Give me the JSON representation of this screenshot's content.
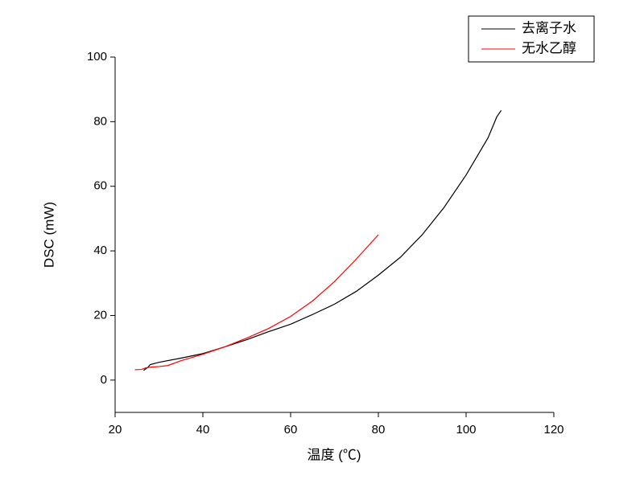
{
  "chart_data": {
    "type": "line",
    "x_label": "温度 (℃)",
    "y_label": "DSC (mW)",
    "xlim": [
      20,
      120
    ],
    "xticks": [
      20,
      40,
      60,
      80,
      100,
      120
    ],
    "ylim": [
      -10,
      100
    ],
    "yticks": [
      0,
      20,
      40,
      60,
      80,
      100
    ],
    "legend": "top-right",
    "series": [
      {
        "name": "去离子水",
        "color": "#000000",
        "x": [
          26.5,
          27.5,
          28,
          30,
          35,
          40,
          45,
          50,
          55,
          60,
          65,
          70,
          75,
          80,
          85,
          90,
          95,
          100,
          105,
          107,
          108
        ],
        "values": [
          3,
          4,
          4.8,
          5.5,
          6.8,
          8.2,
          10.3,
          12.5,
          15,
          17.3,
          20.3,
          23.5,
          27.5,
          32.5,
          38,
          45,
          53.5,
          63.5,
          75,
          81.5,
          83.5
        ]
      },
      {
        "name": "无水乙醇",
        "color": "#ff0000",
        "x": [
          24.5,
          26,
          27,
          28,
          30,
          32,
          35,
          40,
          45,
          50,
          55,
          60,
          65,
          70,
          75,
          80
        ],
        "values": [
          3.2,
          3.3,
          3.8,
          4,
          4.2,
          4.5,
          6,
          8,
          10.3,
          13,
          16,
          19.7,
          24.5,
          30.5,
          37.5,
          45
        ]
      }
    ]
  }
}
